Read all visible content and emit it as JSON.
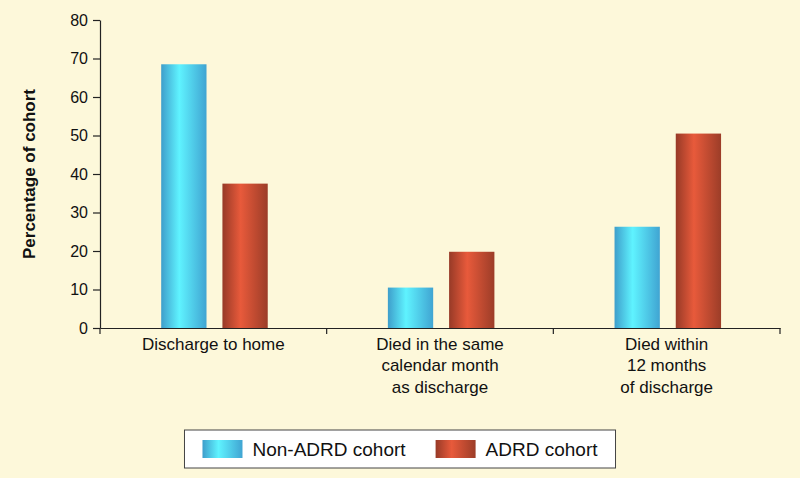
{
  "chart_data": {
    "type": "bar",
    "categories": [
      "Discharge to home",
      "Died in the same\ncalendar month\nas discharge",
      "Died within\n12 months\nof discharge"
    ],
    "series": [
      {
        "name": "Non-ADRD cohort",
        "color": "#45b0e2",
        "values": [
          68.5,
          10.5,
          26.3
        ]
      },
      {
        "name": "ADRD cohort",
        "color": "#a8412b",
        "values": [
          37.5,
          19.8,
          50.5
        ]
      }
    ],
    "ylabel": "Percentage of cohort",
    "ylim": [
      0,
      80
    ],
    "yticks": [
      0,
      10,
      20,
      30,
      40,
      50,
      60,
      70,
      80
    ],
    "grid": false,
    "legend": "bottom"
  }
}
